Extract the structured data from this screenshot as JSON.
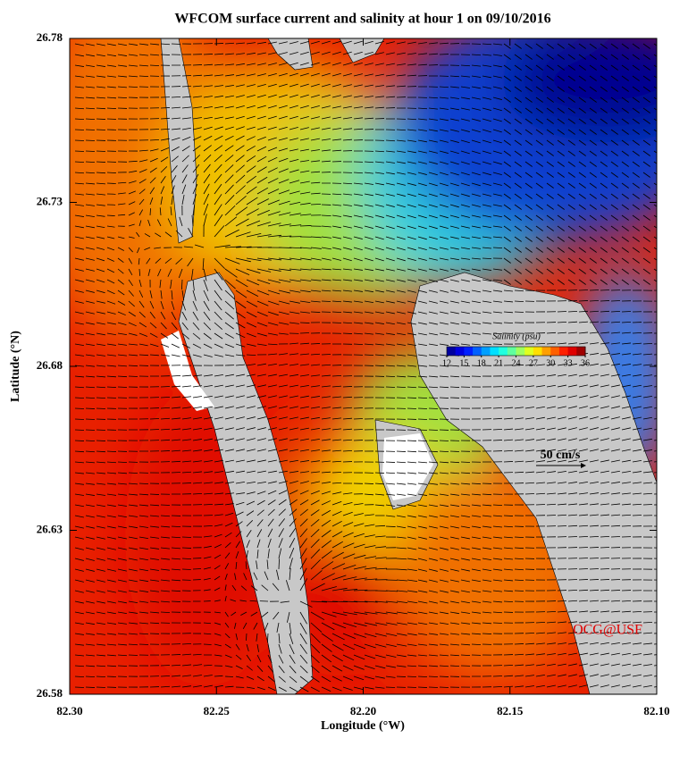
{
  "map": {
    "title": "WFCOM surface current and salinity at hour 1 on 09/10/2016",
    "xlabel": "Longitude (°W)",
    "ylabel": "Latitude (°N)",
    "xlim": [
      82.3,
      82.1
    ],
    "ylim": [
      26.58,
      26.78
    ],
    "xticks": [
      {
        "value": 82.3,
        "label": "82.30"
      },
      {
        "value": 82.25,
        "label": "82.25"
      },
      {
        "value": 82.2,
        "label": "82.20"
      },
      {
        "value": 82.15,
        "label": "82.15"
      },
      {
        "value": 82.1,
        "label": "82.10"
      }
    ],
    "yticks": [
      26.58,
      26.63,
      26.68,
      26.73,
      26.78
    ],
    "colorbar": {
      "label": "Salinity (psu)",
      "lim": [
        12,
        36
      ],
      "ticks": [
        12,
        15,
        18,
        21,
        24,
        27,
        30,
        33,
        36
      ]
    },
    "scale_label": "50 cm/s",
    "credit": "OCG@USF"
  }
}
